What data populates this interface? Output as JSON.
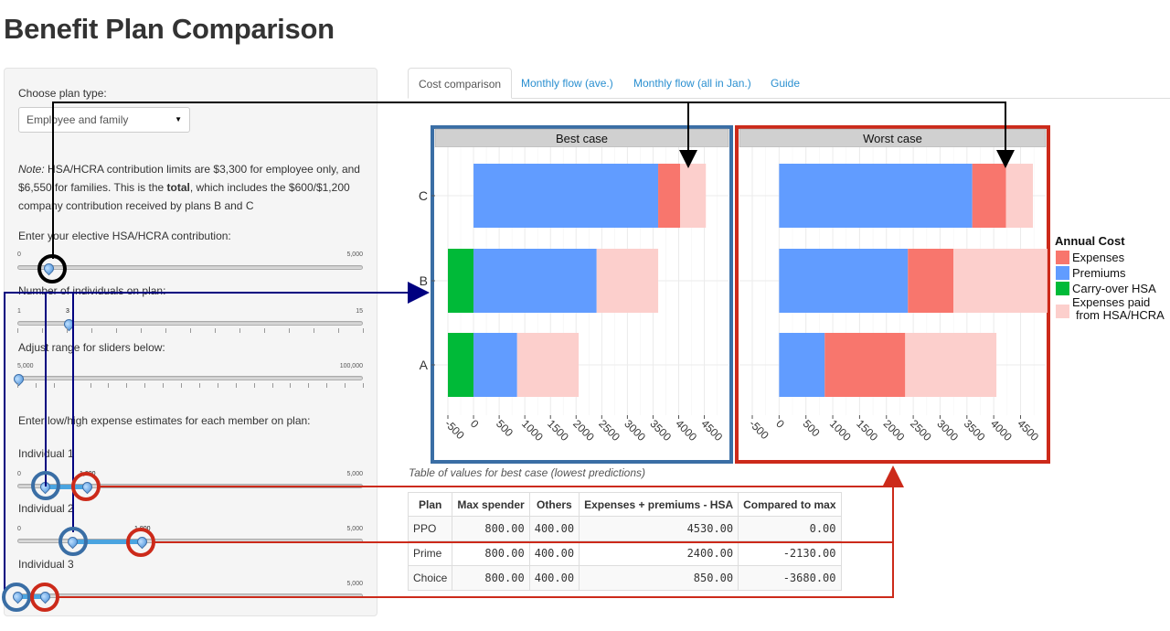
{
  "page_title": "Benefit Plan Comparison",
  "sidebar": {
    "plan_type_label": "Choose plan type:",
    "plan_type_value": "Employee and family",
    "note_prefix": "Note:",
    "note_text_1": " HSA/HCRA contribution limits are $3,300 for employee only, and $6,550 for families. This is the ",
    "note_bold": "total",
    "note_text_2": ", which includes the $600/$1,200 company contribution received by plans B and C",
    "elective_label": "Enter your elective HSA/HCRA contribution:",
    "elective_min": "0",
    "elective_max": "5,000",
    "elective_value": 0.09,
    "individuals_label": "Number of individuals on plan:",
    "individuals_min": "1",
    "individuals_max": "15",
    "individuals_value": "3",
    "range_label": "Adjust range for sliders below:",
    "range_min": "5,000",
    "range_max": "100,000",
    "estimates_label": "Enter low/high expense estimates for each member on plan:",
    "individuals": [
      {
        "label": "Individual 1",
        "min": "0",
        "max": "5,000",
        "low": 0.08,
        "high": 0.2,
        "high_label": "1,000"
      },
      {
        "label": "Individual 2",
        "min": "0",
        "max": "5,000",
        "low": 0.16,
        "high": 0.36,
        "high_label": "1,800"
      },
      {
        "label": "Individual 3",
        "min": "",
        "max": "5,000",
        "low": 0.0,
        "high": 0.08
      }
    ]
  },
  "tabs": [
    {
      "label": "Cost comparison",
      "active": true
    },
    {
      "label": "Monthly flow (ave.)",
      "active": false
    },
    {
      "label": "Monthly flow (all in Jan.)",
      "active": false
    },
    {
      "label": "Guide",
      "active": false
    }
  ],
  "colors": {
    "expenses": "#F8766D",
    "premiums": "#619CFF",
    "carryover": "#00BA38",
    "paid_from_hsa": "#FCCFCC",
    "best_frame": "#3A6EA5",
    "worst_frame": "#CC2A1A"
  },
  "chart_data": [
    {
      "type": "bar",
      "orientation": "horizontal",
      "stacked": true,
      "title": "Best case",
      "categories": [
        "A",
        "B",
        "C"
      ],
      "xlim": [
        -500,
        4900
      ],
      "xticks": [
        -500,
        0,
        500,
        1000,
        1500,
        2000,
        2500,
        3000,
        3500,
        4000,
        4500
      ],
      "series": [
        {
          "name": "Carry-over HSA",
          "color_key": "carryover",
          "start": [
            -500,
            -500,
            0
          ],
          "values": [
            500,
            500,
            0
          ]
        },
        {
          "name": "Premiums",
          "color_key": "premiums",
          "start": [
            0,
            0,
            0
          ],
          "values": [
            850,
            2400,
            3600
          ]
        },
        {
          "name": "Expenses",
          "color_key": "expenses",
          "start": [
            850,
            2400,
            3600
          ],
          "values": [
            0,
            0,
            430
          ]
        },
        {
          "name": "Expenses paid from HSA/HCRA",
          "color_key": "paid_from_hsa",
          "start": [
            850,
            2400,
            4030
          ],
          "values": [
            1200,
            1200,
            500
          ]
        }
      ]
    },
    {
      "type": "bar",
      "orientation": "horizontal",
      "stacked": true,
      "title": "Worst case",
      "categories": [
        "A",
        "B",
        "C"
      ],
      "xlim": [
        -500,
        4900
      ],
      "xticks": [
        -500,
        0,
        500,
        1000,
        1500,
        2000,
        2500,
        3000,
        3500,
        4000,
        4500
      ],
      "series": [
        {
          "name": "Premiums",
          "color_key": "premiums",
          "start": [
            0,
            0,
            0
          ],
          "values": [
            850,
            2400,
            3600
          ]
        },
        {
          "name": "Expenses",
          "color_key": "expenses",
          "start": [
            850,
            2400,
            3600
          ],
          "values": [
            1500,
            850,
            630
          ]
        },
        {
          "name": "Expenses paid from HSA/HCRA",
          "color_key": "paid_from_hsa",
          "start": [
            2350,
            3250,
            4230
          ],
          "values": [
            1700,
            1750,
            500
          ]
        }
      ]
    }
  ],
  "legend": {
    "title": "Annual Cost",
    "items": [
      {
        "label": "Expenses",
        "color_key": "expenses"
      },
      {
        "label": "Premiums",
        "color_key": "premiums"
      },
      {
        "label": "Carry-over HSA",
        "color_key": "carryover"
      },
      {
        "label": "Expenses paid",
        "label2": "from HSA/HCRA",
        "color_key": "paid_from_hsa"
      }
    ]
  },
  "table": {
    "caption": "Table of values for best case (lowest predictions)",
    "headers": [
      "Plan",
      "Max spender",
      "Others",
      "Expenses + premiums - HSA",
      "Compared to max"
    ],
    "rows": [
      [
        "PPO",
        "800.00",
        "400.00",
        "4530.00",
        "0.00"
      ],
      [
        "Prime",
        "800.00",
        "400.00",
        "2400.00",
        "-2130.00"
      ],
      [
        "Choice",
        "800.00",
        "400.00",
        "850.00",
        "-3680.00"
      ]
    ]
  }
}
